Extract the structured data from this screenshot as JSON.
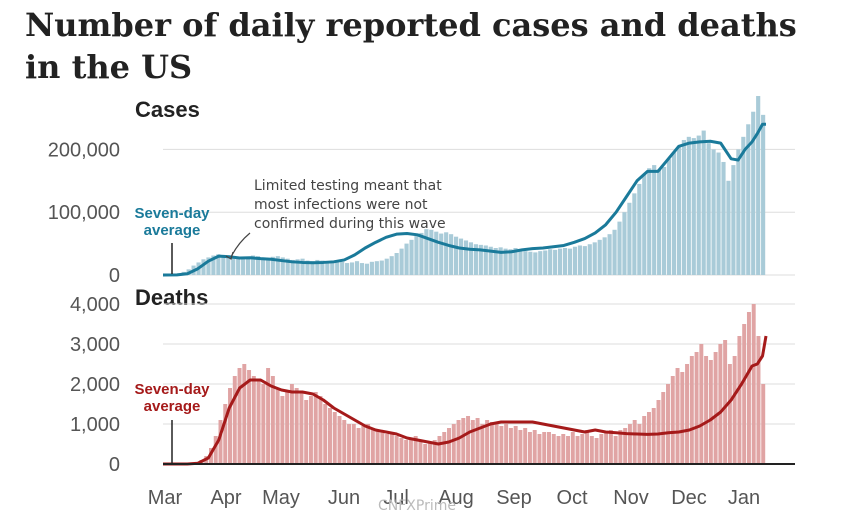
{
  "title": "Number of daily reported cases and deaths in the US",
  "colors": {
    "cases_bar": "#a9cbd8",
    "cases_line": "#1a7a9a",
    "deaths_bar": "#e0a4a4",
    "deaths_line": "#a51a1a",
    "grid": "#dddddd",
    "text": "#222222"
  },
  "watermark": "CNFXPrime",
  "chart_data": [
    {
      "type": "bar",
      "title": "Cases",
      "xlabel": "",
      "ylabel": "",
      "ylim": [
        0,
        250000
      ],
      "yticks": [
        0,
        100000,
        200000
      ],
      "ytick_labels": [
        "0",
        "100,000",
        "200,000"
      ],
      "x_ticks": [
        "Mar",
        "Apr",
        "May",
        "Jun",
        "Jul",
        "Aug",
        "Sep",
        "Oct",
        "Nov",
        "Dec",
        "Jan"
      ],
      "series": [
        {
          "name": "Seven-day average",
          "kind": "line",
          "points": [
            [
              0,
              0
            ],
            [
              8,
              200
            ],
            [
              14,
              2000
            ],
            [
              20,
              10000
            ],
            [
              26,
              22000
            ],
            [
              32,
              30000
            ],
            [
              38,
              29000
            ],
            [
              44,
              27000
            ],
            [
              50,
              27500
            ],
            [
              56,
              26000
            ],
            [
              62,
              25000
            ],
            [
              68,
              23000
            ],
            [
              74,
              21000
            ],
            [
              80,
              20000
            ],
            [
              86,
              19500
            ],
            [
              92,
              20000
            ],
            [
              98,
              21000
            ],
            [
              104,
              24000
            ],
            [
              110,
              32000
            ],
            [
              116,
              43000
            ],
            [
              122,
              52000
            ],
            [
              128,
              60000
            ],
            [
              134,
              65000
            ],
            [
              140,
              66000
            ],
            [
              146,
              64000
            ],
            [
              152,
              58000
            ],
            [
              158,
              52000
            ],
            [
              164,
              47000
            ],
            [
              170,
              43000
            ],
            [
              176,
              41000
            ],
            [
              182,
              40000
            ],
            [
              188,
              38000
            ],
            [
              194,
              36000
            ],
            [
              200,
              37000
            ],
            [
              206,
              40000
            ],
            [
              212,
              42000
            ],
            [
              218,
              43000
            ],
            [
              224,
              45000
            ],
            [
              230,
              47000
            ],
            [
              236,
              52000
            ],
            [
              242,
              58000
            ],
            [
              248,
              67000
            ],
            [
              254,
              80000
            ],
            [
              260,
              100000
            ],
            [
              266,
              125000
            ],
            [
              272,
              150000
            ],
            [
              278,
              165000
            ],
            [
              284,
              165000
            ],
            [
              290,
              185000
            ],
            [
              296,
              205000
            ],
            [
              302,
              210000
            ],
            [
              308,
              212000
            ],
            [
              314,
              213000
            ],
            [
              320,
              210000
            ],
            [
              326,
              185000
            ],
            [
              330,
              183000
            ],
            [
              334,
              200000
            ],
            [
              338,
              212000
            ],
            [
              341,
              225000
            ],
            [
              344,
              240000
            ],
            [
              346,
              240000
            ]
          ]
        }
      ],
      "bars": [
        {
          "day_start": 5,
          "day_end": 346,
          "values": [
            1000,
            2000,
            5000,
            9000,
            15000,
            20000,
            25000,
            28000,
            31000,
            33000,
            32000,
            30000,
            29000,
            28000,
            27000,
            29000,
            31000,
            30000,
            27000,
            25000,
            29000,
            30000,
            28000,
            26000,
            24000,
            25000,
            26000,
            23000,
            22000,
            24000,
            23000,
            21000,
            20000,
            22000,
            21000,
            19000,
            20000,
            22000,
            19000,
            18000,
            21000,
            22000,
            23000,
            26000,
            30000,
            35000,
            42000,
            50000,
            56000,
            62000,
            67000,
            73000,
            72000,
            69000,
            66000,
            68000,
            65000,
            61000,
            58000,
            55000,
            52000,
            49000,
            48000,
            47000,
            45000,
            43000,
            44000,
            42000,
            41000,
            43000,
            40000,
            38000,
            37000,
            36000,
            38000,
            39000,
            41000,
            40000,
            42000,
            43000,
            42000,
            45000,
            47000,
            46000,
            49000,
            52000,
            56000,
            60000,
            65000,
            72000,
            85000,
            100000,
            115000,
            130000,
            145000,
            160000,
            170000,
            175000,
            168000,
            172000,
            185000,
            195000,
            205000,
            215000,
            220000,
            218000,
            222000,
            230000,
            210000,
            200000,
            195000,
            180000,
            150000,
            175000,
            200000,
            220000,
            240000,
            260000,
            285000,
            255000
          ]
        }
      ]
    },
    {
      "type": "bar",
      "title": "Deaths",
      "xlabel": "",
      "ylabel": "",
      "ylim": [
        0,
        4100
      ],
      "yticks": [
        0,
        1000,
        2000,
        3000,
        4000
      ],
      "ytick_labels": [
        "0",
        "1,000",
        "2,000",
        "3,000",
        "4,000"
      ],
      "x_ticks": [
        "Mar",
        "Apr",
        "May",
        "Jun",
        "Jul",
        "Aug",
        "Sep",
        "Oct",
        "Nov",
        "Dec",
        "Jan"
      ],
      "series": [
        {
          "name": "Seven-day average",
          "kind": "line",
          "points": [
            [
              0,
              0
            ],
            [
              14,
              0
            ],
            [
              20,
              20
            ],
            [
              26,
              150
            ],
            [
              32,
              600
            ],
            [
              38,
              1400
            ],
            [
              44,
              1900
            ],
            [
              50,
              2100
            ],
            [
              56,
              2100
            ],
            [
              62,
              1950
            ],
            [
              68,
              1850
            ],
            [
              74,
              1800
            ],
            [
              80,
              1800
            ],
            [
              86,
              1750
            ],
            [
              92,
              1600
            ],
            [
              98,
              1400
            ],
            [
              104,
              1250
            ],
            [
              110,
              1100
            ],
            [
              116,
              950
            ],
            [
              122,
              850
            ],
            [
              128,
              800
            ],
            [
              134,
              750
            ],
            [
              140,
              650
            ],
            [
              146,
              600
            ],
            [
              152,
              550
            ],
            [
              158,
              500
            ],
            [
              164,
              550
            ],
            [
              170,
              650
            ],
            [
              176,
              800
            ],
            [
              182,
              900
            ],
            [
              188,
              1000
            ],
            [
              194,
              1050
            ],
            [
              200,
              1050
            ],
            [
              206,
              1050
            ],
            [
              212,
              1050
            ],
            [
              218,
              1000
            ],
            [
              224,
              950
            ],
            [
              230,
              900
            ],
            [
              236,
              850
            ],
            [
              242,
              800
            ],
            [
              248,
              850
            ],
            [
              254,
              800
            ],
            [
              260,
              780
            ],
            [
              266,
              760
            ],
            [
              272,
              750
            ],
            [
              278,
              740
            ],
            [
              284,
              750
            ],
            [
              290,
              780
            ],
            [
              296,
              800
            ],
            [
              302,
              850
            ],
            [
              308,
              950
            ],
            [
              314,
              1100
            ],
            [
              320,
              1300
            ],
            [
              326,
              1600
            ],
            [
              332,
              2000
            ],
            [
              338,
              2450
            ],
            [
              341,
              2500
            ],
            [
              344,
              2700
            ],
            [
              346,
              3200
            ]
          ]
        }
      ],
      "bars": [
        {
          "day_start": 10,
          "day_end": 346,
          "values": [
            0,
            0,
            10,
            40,
            100,
            200,
            400,
            700,
            1100,
            1500,
            1900,
            2200,
            2400,
            2500,
            2350,
            2200,
            2100,
            2000,
            2400,
            2200,
            1900,
            1700,
            1800,
            2000,
            1900,
            1800,
            1600,
            1700,
            1800,
            1700,
            1500,
            1400,
            1300,
            1200,
            1100,
            1000,
            1000,
            900,
            950,
            1000,
            900,
            850,
            800,
            750,
            800,
            700,
            650,
            600,
            650,
            700,
            600,
            500,
            550,
            600,
            700,
            800,
            900,
            1000,
            1100,
            1150,
            1200,
            1100,
            1150,
            1000,
            1100,
            1050,
            1000,
            950,
            1000,
            900,
            950,
            850,
            900,
            800,
            850,
            750,
            800,
            800,
            750,
            700,
            750,
            700,
            800,
            700,
            750,
            850,
            700,
            650,
            750,
            800,
            850,
            700,
            850,
            900,
            1000,
            1100,
            1000,
            1200,
            1300,
            1400,
            1600,
            1800,
            2000,
            2200,
            2400,
            2300,
            2500,
            2700,
            2800,
            3000,
            2700,
            2600,
            2800,
            3000,
            3100,
            2500,
            2700,
            3200,
            3500,
            3800,
            4000,
            3200,
            2000
          ]
        }
      ]
    }
  ],
  "annotations": {
    "cases_avg": [
      "Seven-day",
      "average"
    ],
    "deaths_avg": [
      "Seven-day",
      "average"
    ],
    "testing_note": [
      "Limited testing meant that",
      "most infections were not",
      "confirmed during this wave"
    ]
  }
}
